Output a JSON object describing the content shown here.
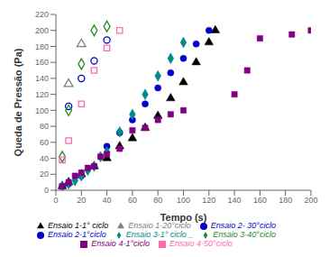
{
  "chart_data": {
    "type": "scatter",
    "xlabel": "Tempo (s)",
    "ylabel": "Queda de Pressão (Pa)",
    "xlim": [
      0,
      200
    ],
    "ylim": [
      0,
      220
    ],
    "xticks": [
      0,
      20,
      40,
      60,
      80,
      100,
      120,
      140,
      160,
      180,
      200
    ],
    "yticks": [
      0,
      20,
      40,
      60,
      80,
      100,
      120,
      140,
      160,
      180,
      200,
      220
    ],
    "grid": false,
    "legend": "bottom",
    "series": [
      {
        "name": "Ensaio 1-1° ciclo",
        "color": "#000000",
        "marker": "triangle",
        "x": [
          5,
          10,
          20,
          30,
          40,
          50,
          60,
          70,
          80,
          90,
          100,
          110,
          120,
          125
        ],
        "values": [
          5,
          10,
          20,
          30,
          40,
          55,
          65,
          78,
          93,
          115,
          135,
          160,
          185,
          200
        ]
      },
      {
        "name": "Ensaio 1-20°ciclo",
        "color": "#808080",
        "marker": "triangle_open",
        "x": [
          10,
          20
        ],
        "values": [
          133,
          183
        ]
      },
      {
        "name": "Ensaio 2-1°ciclo",
        "color": "#0000CC",
        "marker": "circle",
        "x": [
          5,
          10,
          20,
          30,
          40,
          50,
          60,
          70,
          80,
          90,
          100,
          110,
          120
        ],
        "values": [
          5,
          8,
          18,
          30,
          55,
          72,
          88,
          108,
          128,
          147,
          165,
          183,
          200
        ]
      },
      {
        "name": "Ensaio 2- 30°ciclo",
        "color": "#0000CC",
        "marker": "circle_open",
        "x": [
          10,
          20,
          30,
          40
        ],
        "values": [
          105,
          140,
          162,
          188
        ]
      },
      {
        "name": "Ensaio 3-1° ciclo _",
        "color": "#008B8B",
        "marker": "diamond",
        "x": [
          5,
          10,
          15,
          20,
          25,
          30,
          35,
          40,
          50,
          60,
          70,
          80,
          90,
          100
        ],
        "values": [
          5,
          8,
          12,
          18,
          25,
          30,
          42,
          48,
          73,
          95,
          120,
          143,
          165,
          185
        ]
      },
      {
        "name": "Ensaio 3-40°ciclo",
        "color": "#228B22",
        "marker": "diamond_open",
        "x": [
          5,
          10,
          20,
          30,
          40
        ],
        "values": [
          42,
          100,
          158,
          200,
          205
        ]
      },
      {
        "name": "Ensaio 4-1°ciclo",
        "color": "#800080",
        "marker": "square",
        "x": [
          5,
          10,
          15,
          20,
          25,
          30,
          35,
          40,
          50,
          60,
          70,
          80,
          90,
          100,
          140,
          150,
          160,
          185,
          200
        ],
        "values": [
          5,
          10,
          18,
          22,
          28,
          30,
          42,
          45,
          52,
          75,
          78,
          88,
          95,
          100,
          120,
          150,
          190,
          195,
          200
        ]
      },
      {
        "name": "Ensaio 4-50°ciclo",
        "color": "#FF69B4",
        "marker": "square_open",
        "x": [
          5,
          10,
          20,
          30,
          40,
          50
        ],
        "values": [
          38,
          62,
          108,
          150,
          178,
          200
        ]
      }
    ]
  }
}
